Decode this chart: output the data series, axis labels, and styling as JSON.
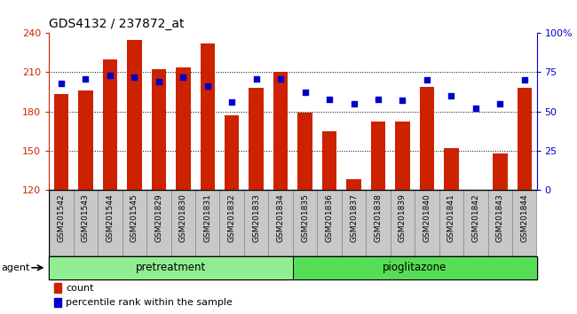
{
  "title": "GDS4132 / 237872_at",
  "samples": [
    "GSM201542",
    "GSM201543",
    "GSM201544",
    "GSM201545",
    "GSM201829",
    "GSM201830",
    "GSM201831",
    "GSM201832",
    "GSM201833",
    "GSM201834",
    "GSM201835",
    "GSM201836",
    "GSM201837",
    "GSM201838",
    "GSM201839",
    "GSM201840",
    "GSM201841",
    "GSM201842",
    "GSM201843",
    "GSM201844"
  ],
  "counts": [
    193,
    196,
    220,
    235,
    212,
    214,
    232,
    177,
    198,
    210,
    179,
    165,
    128,
    172,
    172,
    199,
    152,
    120,
    148,
    198
  ],
  "percentile_ranks": [
    68,
    71,
    73,
    72,
    69,
    72,
    66,
    56,
    71,
    71,
    62,
    58,
    55,
    58,
    57,
    70,
    60,
    52,
    55,
    70
  ],
  "pretreatment_count": 10,
  "pioglitazone_count": 10,
  "ylim_left": [
    120,
    240
  ],
  "ylim_right": [
    0,
    100
  ],
  "yticks_left": [
    120,
    150,
    180,
    210,
    240
  ],
  "yticks_right": [
    0,
    25,
    50,
    75,
    100
  ],
  "bar_color": "#cc2200",
  "dot_color": "#0000cc",
  "bar_width": 0.6,
  "pretreatment_color": "#90ee90",
  "pioglitazone_color": "#55dd55",
  "agent_label": "agent",
  "pretreatment_label": "pretreatment",
  "pioglitazone_label": "pioglitazone",
  "legend_count_label": "count",
  "legend_percentile_label": "percentile rank within the sample",
  "ticklabel_bg": "#c8c8c8",
  "plot_bg_color": "#ffffff",
  "grid_color": "#000000",
  "border_color": "#888888"
}
